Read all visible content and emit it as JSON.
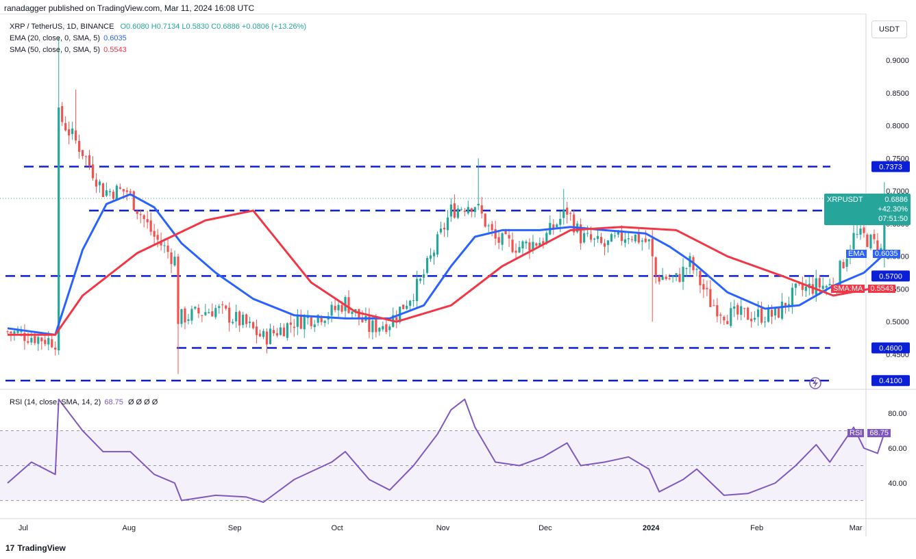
{
  "header": {
    "published": "ranadagger published on TradingView.com, Mar 11, 2024 16:08 UTC"
  },
  "legend": {
    "symbol": "XRP / TetherUS, 1D, BINANCE",
    "ohlc": "O0.6080 H0.7134 L0.5830 C0.6886 +0.0806 (+13.26%)",
    "ema": {
      "label": "EMA (20, close, 0, SMA, 5)",
      "value": "0.6035"
    },
    "sma": {
      "label": "SMA (50, close, 0, SMA, 5)",
      "value": "0.5543"
    },
    "rsi": {
      "label": "RSI (14, close, SMA, 14, 2)",
      "value": "68.75",
      "extra": "Ø Ø Ø Ø"
    }
  },
  "currency_button": "USDT",
  "tags": {
    "price_symbol": "XRPUSDT",
    "price_value": "0.6886",
    "price_change": "+42.30%",
    "price_countdown": "07:51:50",
    "ema_label": "EMA",
    "ema_value": "0.6035",
    "sma_label": "SMA:MA",
    "sma_value": "0.5543",
    "rsi_label": "RSI",
    "rsi_value": "68.75",
    "levels": [
      "0.7373",
      "0.6700",
      "0.5700",
      "0.4600",
      "0.4100"
    ]
  },
  "footer": {
    "brand": "TradingView"
  },
  "colors": {
    "up": "#26a69a",
    "down": "#ef5350",
    "ema": "#2962ff",
    "sma": "#f23645",
    "rsi": "#7e57c2",
    "level": "#0b1fd6",
    "price_tag": "#26a69a"
  },
  "chart_data": [
    {
      "type": "candlestick",
      "title": "XRP / TetherUS, 1D, BINANCE",
      "ylim": [
        0.4,
        0.95
      ],
      "y_ticks": [
        0.45,
        0.5,
        0.55,
        0.6,
        0.65,
        0.7,
        0.75,
        0.8,
        0.85,
        0.9
      ],
      "y_tick_labels": [
        "0.4500",
        "0.5000",
        "0.5500",
        "0.6000",
        "0.6500",
        "0.7000",
        "0.7500",
        "0.8000",
        "0.8500",
        "0.9000"
      ],
      "x_ticks": [
        "Jul",
        "Aug",
        "Sep",
        "Oct",
        "Nov",
        "Dec",
        "2024",
        "Feb",
        "Mar"
      ],
      "x_tick_dates": [
        "2023-07-01",
        "2023-08-01",
        "2023-09-01",
        "2023-10-01",
        "2023-11-01",
        "2023-12-01",
        "2024-01-01",
        "2024-02-01",
        "2024-03-01"
      ],
      "date_range": [
        "2023-06-28",
        "2024-03-11"
      ],
      "horizontal_levels": [
        0.7373,
        0.67,
        0.57,
        0.46,
        0.41
      ],
      "close_keypoints": [
        [
          "2023-06-28",
          0.485
        ],
        [
          "2023-07-12",
          0.47
        ],
        [
          "2023-07-13",
          0.815
        ],
        [
          "2023-07-20",
          0.76
        ],
        [
          "2023-07-26",
          0.7
        ],
        [
          "2023-08-02",
          0.7
        ],
        [
          "2023-08-10",
          0.63
        ],
        [
          "2023-08-16",
          0.595
        ],
        [
          "2023-08-17",
          0.505
        ],
        [
          "2023-08-28",
          0.52
        ],
        [
          "2023-09-06",
          0.495
        ],
        [
          "2023-09-11",
          0.475
        ],
        [
          "2023-09-20",
          0.5
        ],
        [
          "2023-10-01",
          0.515
        ],
        [
          "2023-10-05",
          0.53
        ],
        [
          "2023-10-12",
          0.49
        ],
        [
          "2023-10-18",
          0.5
        ],
        [
          "2023-10-22",
          0.525
        ],
        [
          "2023-10-27",
          0.56
        ],
        [
          "2023-11-05",
          0.67
        ],
        [
          "2023-11-10",
          0.68
        ],
        [
          "2023-11-12",
          0.68
        ],
        [
          "2023-11-18",
          0.625
        ],
        [
          "2023-11-25",
          0.615
        ],
        [
          "2023-12-02",
          0.625
        ],
        [
          "2023-12-09",
          0.67
        ],
        [
          "2023-12-13",
          0.63
        ],
        [
          "2023-12-20",
          0.615
        ],
        [
          "2023-12-27",
          0.635
        ],
        [
          "2024-01-02",
          0.62
        ],
        [
          "2024-01-04",
          0.57
        ],
        [
          "2024-01-10",
          0.565
        ],
        [
          "2024-01-14",
          0.59
        ],
        [
          "2024-01-20",
          0.53
        ],
        [
          "2024-01-25",
          0.51
        ],
        [
          "2024-01-31",
          0.51
        ],
        [
          "2024-02-08",
          0.51
        ],
        [
          "2024-02-14",
          0.545
        ],
        [
          "2024-02-20",
          0.555
        ],
        [
          "2024-02-25",
          0.555
        ],
        [
          "2024-03-02",
          0.63
        ],
        [
          "2024-03-05",
          0.63
        ],
        [
          "2024-03-09",
          0.615
        ],
        [
          "2024-03-10",
          0.608
        ],
        [
          "2024-03-11",
          0.6886
        ]
      ],
      "spikes": [
        {
          "date": "2023-07-13",
          "high": 0.935
        },
        {
          "date": "2023-07-18",
          "high": 0.855
        },
        {
          "date": "2023-08-17",
          "low": 0.42
        },
        {
          "date": "2023-11-13",
          "high": 0.75
        },
        {
          "date": "2023-12-08",
          "high": 0.703
        },
        {
          "date": "2024-01-03",
          "low": 0.5
        },
        {
          "date": "2024-03-11",
          "high": 0.7134,
          "low": 0.583
        }
      ],
      "last_candle": {
        "date": "2024-03-11",
        "open": 0.608,
        "high": 0.7134,
        "low": 0.583,
        "close": 0.6886
      },
      "series": [
        {
          "name": "EMA (20, close, 0, SMA, 5)",
          "last": 0.6035,
          "values": [
            [
              "2023-06-28",
              0.49
            ],
            [
              "2023-07-12",
              0.48
            ],
            [
              "2023-07-20",
              0.61
            ],
            [
              "2023-07-27",
              0.68
            ],
            [
              "2023-08-03",
              0.695
            ],
            [
              "2023-08-10",
              0.675
            ],
            [
              "2023-08-18",
              0.62
            ],
            [
              "2023-08-28",
              0.575
            ],
            [
              "2023-09-08",
              0.535
            ],
            [
              "2023-09-20",
              0.51
            ],
            [
              "2023-10-05",
              0.505
            ],
            [
              "2023-10-18",
              0.505
            ],
            [
              "2023-10-28",
              0.525
            ],
            [
              "2023-11-05",
              0.585
            ],
            [
              "2023-11-12",
              0.63
            ],
            [
              "2023-11-20",
              0.64
            ],
            [
              "2023-12-01",
              0.64
            ],
            [
              "2023-12-10",
              0.645
            ],
            [
              "2023-12-20",
              0.64
            ],
            [
              "2024-01-01",
              0.635
            ],
            [
              "2024-01-08",
              0.615
            ],
            [
              "2024-01-15",
              0.59
            ],
            [
              "2024-01-25",
              0.545
            ],
            [
              "2024-02-05",
              0.52
            ],
            [
              "2024-02-15",
              0.525
            ],
            [
              "2024-02-25",
              0.555
            ],
            [
              "2024-03-05",
              0.575
            ],
            [
              "2024-03-11",
              0.6035
            ]
          ]
        },
        {
          "name": "SMA (50, close, 0, SMA, 5)",
          "last": 0.5543,
          "values": [
            [
              "2023-06-28",
              0.48
            ],
            [
              "2023-07-12",
              0.48
            ],
            [
              "2023-07-20",
              0.54
            ],
            [
              "2023-08-05",
              0.605
            ],
            [
              "2023-08-25",
              0.655
            ],
            [
              "2023-09-08",
              0.67
            ],
            [
              "2023-09-25",
              0.56
            ],
            [
              "2023-10-08",
              0.515
            ],
            [
              "2023-10-20",
              0.5
            ],
            [
              "2023-11-05",
              0.525
            ],
            [
              "2023-11-20",
              0.585
            ],
            [
              "2023-12-10",
              0.64
            ],
            [
              "2023-12-25",
              0.645
            ],
            [
              "2024-01-10",
              0.64
            ],
            [
              "2024-01-25",
              0.6
            ],
            [
              "2024-02-10",
              0.57
            ],
            [
              "2024-02-25",
              0.54
            ],
            [
              "2024-03-11",
              0.5543
            ]
          ]
        }
      ]
    },
    {
      "type": "line",
      "title": "RSI (14, close, SMA, 14, 2)",
      "ylim": [
        25,
        90
      ],
      "y_ticks": [
        40,
        60,
        80
      ],
      "y_tick_labels": [
        "40.00",
        "60.00",
        "80.00"
      ],
      "bands": [
        30,
        50,
        70
      ],
      "series": [
        {
          "name": "RSI",
          "last": 68.75,
          "values": [
            [
              "2023-06-28",
              40
            ],
            [
              "2023-07-05",
              52
            ],
            [
              "2023-07-12",
              45
            ],
            [
              "2023-07-13",
              88
            ],
            [
              "2023-07-20",
              70
            ],
            [
              "2023-07-26",
              58
            ],
            [
              "2023-08-03",
              58
            ],
            [
              "2023-08-10",
              45
            ],
            [
              "2023-08-16",
              40
            ],
            [
              "2023-08-18",
              30
            ],
            [
              "2023-08-28",
              33
            ],
            [
              "2023-09-06",
              32
            ],
            [
              "2023-09-11",
              29
            ],
            [
              "2023-09-20",
              42
            ],
            [
              "2023-10-01",
              52
            ],
            [
              "2023-10-05",
              58
            ],
            [
              "2023-10-12",
              42
            ],
            [
              "2023-10-18",
              36
            ],
            [
              "2023-10-25",
              50
            ],
            [
              "2023-11-01",
              68
            ],
            [
              "2023-11-05",
              82
            ],
            [
              "2023-11-09",
              88
            ],
            [
              "2023-11-12",
              72
            ],
            [
              "2023-11-18",
              52
            ],
            [
              "2023-11-25",
              50
            ],
            [
              "2023-12-02",
              55
            ],
            [
              "2023-12-09",
              63
            ],
            [
              "2023-12-13",
              50
            ],
            [
              "2023-12-20",
              52
            ],
            [
              "2023-12-27",
              55
            ],
            [
              "2024-01-02",
              48
            ],
            [
              "2024-01-05",
              35
            ],
            [
              "2024-01-12",
              42
            ],
            [
              "2024-01-16",
              48
            ],
            [
              "2024-01-24",
              33
            ],
            [
              "2024-01-31",
              34
            ],
            [
              "2024-02-08",
              40
            ],
            [
              "2024-02-14",
              50
            ],
            [
              "2024-02-20",
              62
            ],
            [
              "2024-02-24",
              52
            ],
            [
              "2024-03-02",
              72
            ],
            [
              "2024-03-05",
              60
            ],
            [
              "2024-03-09",
              57
            ],
            [
              "2024-03-11",
              68.75
            ]
          ]
        }
      ]
    }
  ]
}
